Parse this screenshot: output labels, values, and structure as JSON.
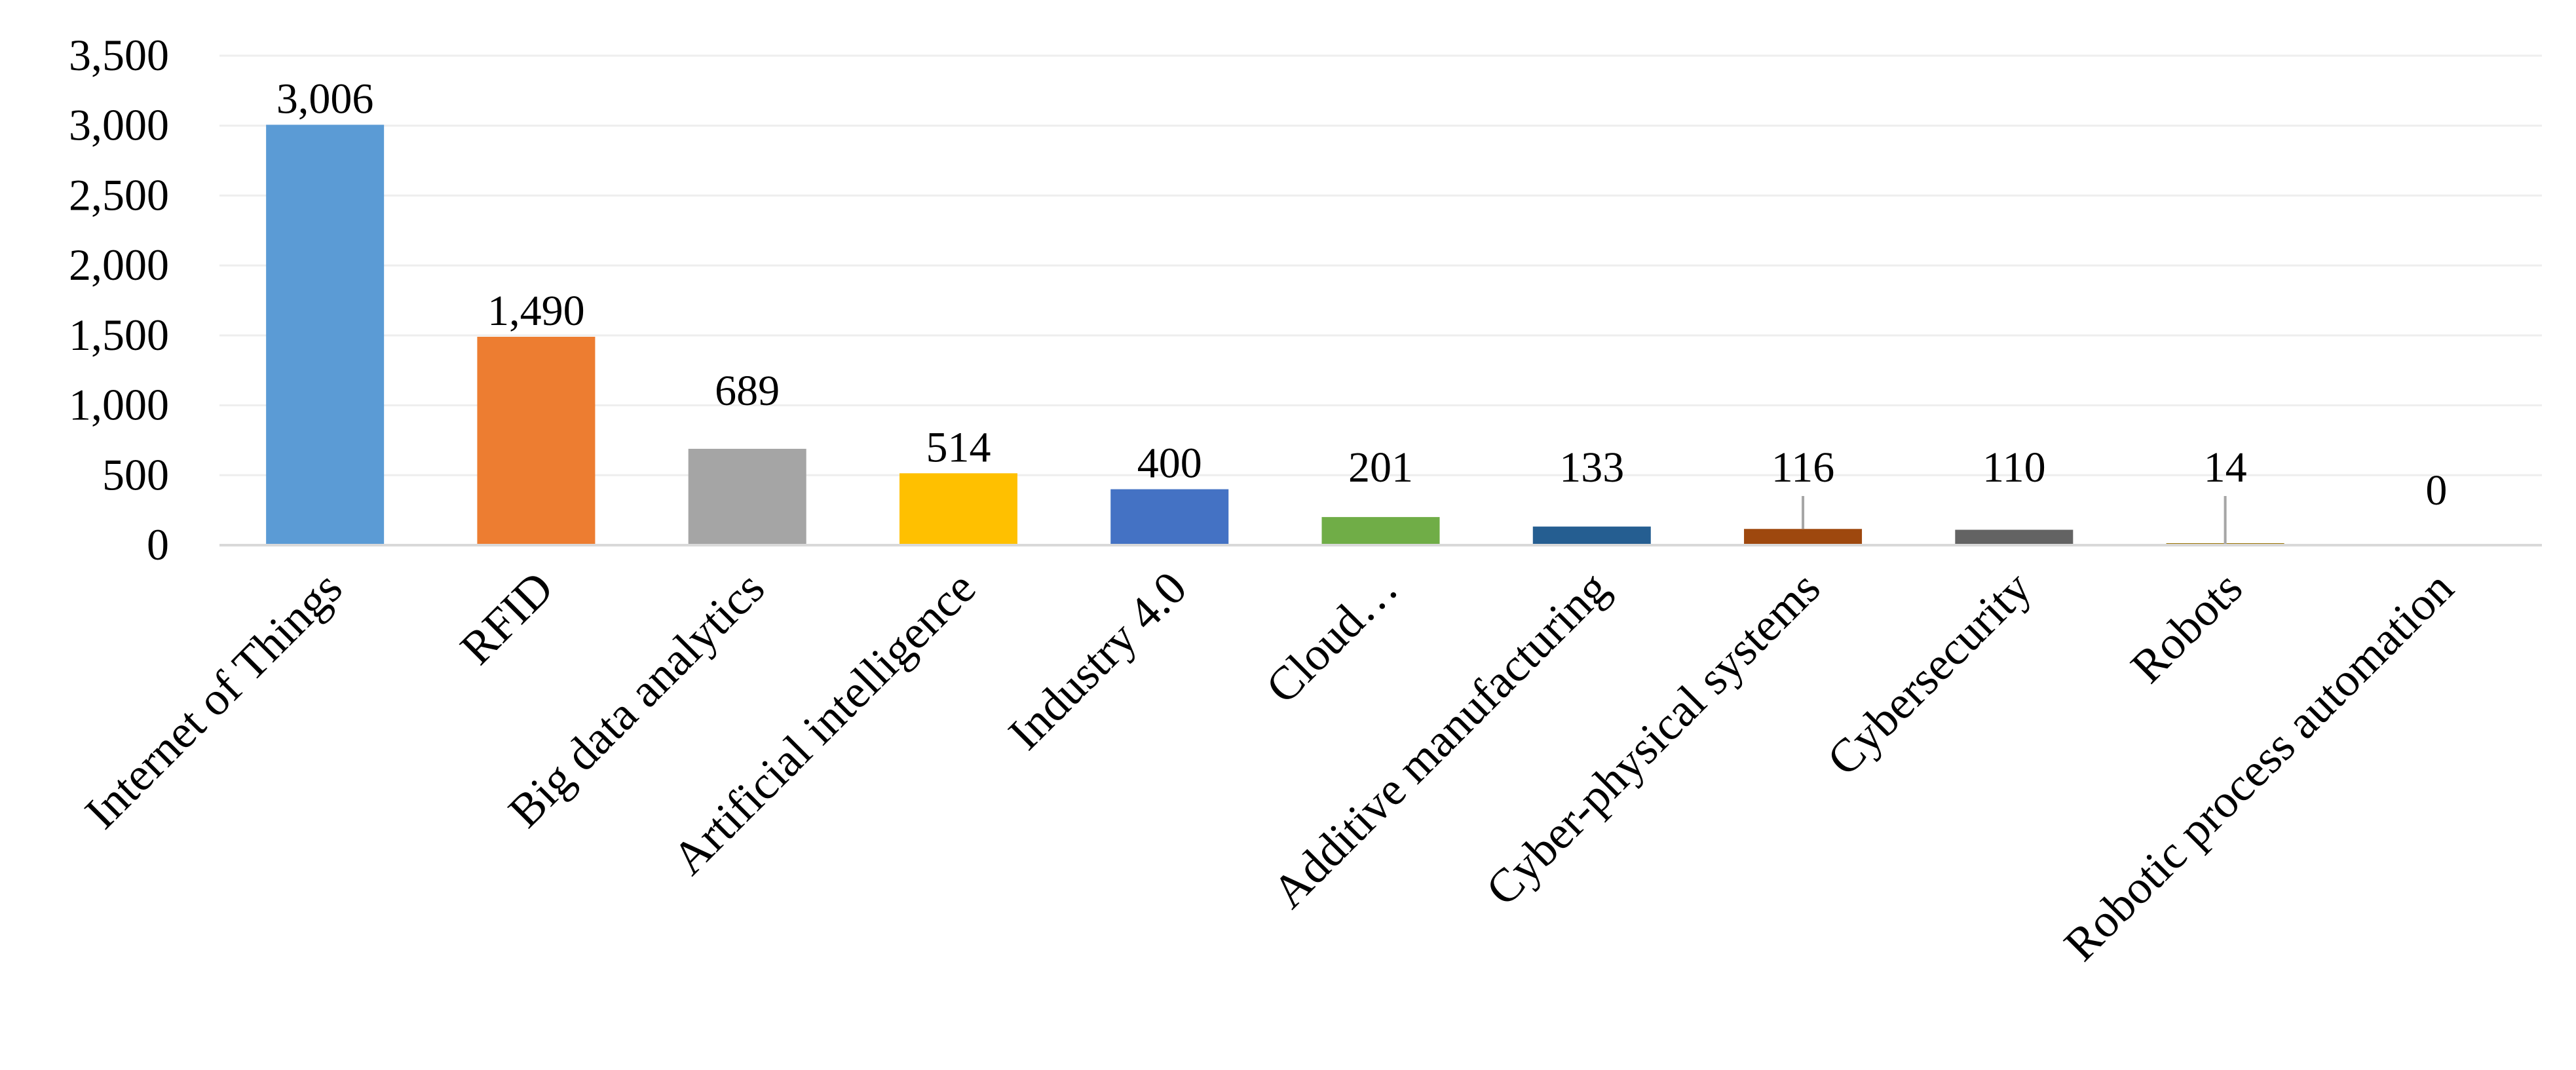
{
  "chart_data": {
    "type": "bar",
    "title": "",
    "xlabel": "",
    "ylabel": "",
    "ylim": [
      0,
      3500
    ],
    "yticks": [
      0,
      500,
      1000,
      1500,
      2000,
      2500,
      3000,
      3500
    ],
    "ytick_labels": [
      "0",
      "500",
      "1,000",
      "1,500",
      "2,000",
      "2,500",
      "3,000",
      "3,500"
    ],
    "grid": true,
    "legend": "none",
    "categories": [
      "Internet of Things",
      "RFID",
      "Big data analytics",
      "Artificial intelligence",
      "Industry 4.0",
      "Cloud…",
      "Additive manufacturing",
      "Cyber-physical systems",
      "Cybersecurity",
      "Robots",
      "Robotic process automation"
    ],
    "values": [
      3006,
      1490,
      689,
      514,
      400,
      201,
      133,
      116,
      110,
      14,
      0
    ],
    "data_labels": [
      "3,006",
      "1,490",
      "689",
      "514",
      "400",
      "201",
      "133",
      "116",
      "110",
      "14",
      "0"
    ],
    "colors": [
      "#5B9BD5",
      "#ED7D31",
      "#A5A5A5",
      "#FFC000",
      "#4472C4",
      "#70AD47",
      "#255E91",
      "#9E480E",
      "#636363",
      "#997300",
      "#264478"
    ],
    "leader_line_color": "#A6A6A6",
    "grid_color": "#EEEEEE",
    "axis_color": "#D9D9D9"
  }
}
